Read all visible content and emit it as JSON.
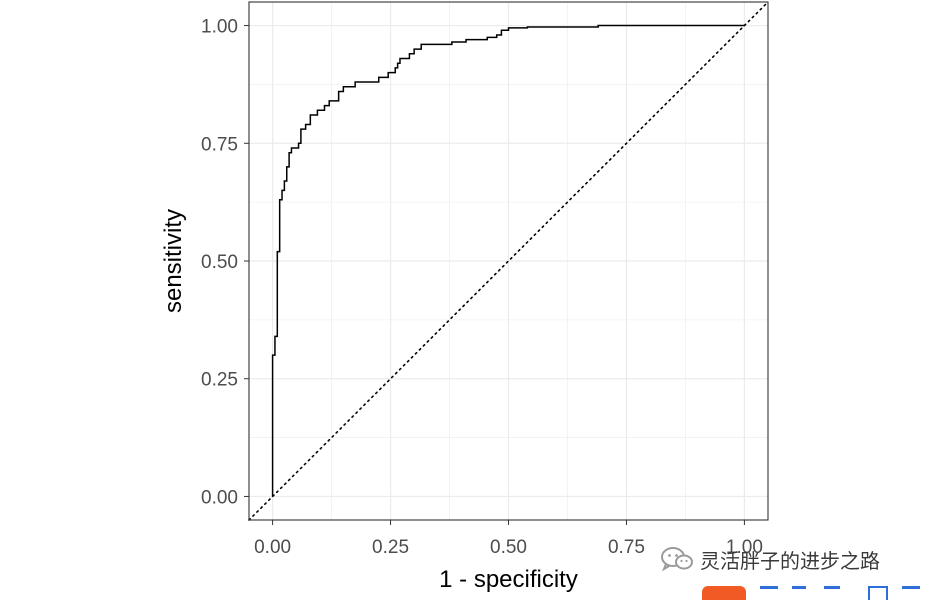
{
  "chart_data": {
    "type": "line",
    "title": "",
    "xlabel": "1 - specificity",
    "ylabel": "sensitivity",
    "xlim": [
      -0.05,
      1.05
    ],
    "ylim": [
      -0.05,
      1.05
    ],
    "x_ticks": [
      "0.00",
      "0.25",
      "0.50",
      "0.75",
      "1.00"
    ],
    "y_ticks": [
      "0.00",
      "0.25",
      "0.50",
      "0.75",
      "1.00"
    ],
    "x_tick_values": [
      0,
      0.25,
      0.5,
      0.75,
      1.0
    ],
    "y_tick_values": [
      0,
      0.25,
      0.5,
      0.75,
      1.0
    ],
    "grid": true,
    "legend": "none",
    "series": [
      {
        "style": "solid",
        "color": "#000000",
        "points": [
          [
            0.0,
            0.0
          ],
          [
            0.0,
            0.3
          ],
          [
            0.005,
            0.3
          ],
          [
            0.005,
            0.34
          ],
          [
            0.01,
            0.34
          ],
          [
            0.01,
            0.52
          ],
          [
            0.015,
            0.52
          ],
          [
            0.015,
            0.63
          ],
          [
            0.02,
            0.63
          ],
          [
            0.02,
            0.65
          ],
          [
            0.025,
            0.65
          ],
          [
            0.025,
            0.67
          ],
          [
            0.03,
            0.67
          ],
          [
            0.03,
            0.7
          ],
          [
            0.035,
            0.7
          ],
          [
            0.035,
            0.73
          ],
          [
            0.04,
            0.73
          ],
          [
            0.04,
            0.74
          ],
          [
            0.055,
            0.74
          ],
          [
            0.055,
            0.75
          ],
          [
            0.06,
            0.75
          ],
          [
            0.06,
            0.78
          ],
          [
            0.07,
            0.78
          ],
          [
            0.07,
            0.79
          ],
          [
            0.08,
            0.79
          ],
          [
            0.08,
            0.81
          ],
          [
            0.095,
            0.81
          ],
          [
            0.095,
            0.82
          ],
          [
            0.11,
            0.82
          ],
          [
            0.11,
            0.83
          ],
          [
            0.12,
            0.83
          ],
          [
            0.12,
            0.84
          ],
          [
            0.14,
            0.84
          ],
          [
            0.14,
            0.86
          ],
          [
            0.15,
            0.86
          ],
          [
            0.15,
            0.87
          ],
          [
            0.175,
            0.87
          ],
          [
            0.175,
            0.88
          ],
          [
            0.225,
            0.88
          ],
          [
            0.225,
            0.89
          ],
          [
            0.245,
            0.89
          ],
          [
            0.245,
            0.9
          ],
          [
            0.26,
            0.9
          ],
          [
            0.26,
            0.91
          ],
          [
            0.265,
            0.91
          ],
          [
            0.265,
            0.92
          ],
          [
            0.27,
            0.92
          ],
          [
            0.27,
            0.93
          ],
          [
            0.29,
            0.93
          ],
          [
            0.29,
            0.94
          ],
          [
            0.3,
            0.94
          ],
          [
            0.3,
            0.95
          ],
          [
            0.315,
            0.95
          ],
          [
            0.315,
            0.96
          ],
          [
            0.38,
            0.96
          ],
          [
            0.38,
            0.965
          ],
          [
            0.41,
            0.965
          ],
          [
            0.41,
            0.97
          ],
          [
            0.455,
            0.97
          ],
          [
            0.455,
            0.975
          ],
          [
            0.475,
            0.975
          ],
          [
            0.475,
            0.98
          ],
          [
            0.485,
            0.98
          ],
          [
            0.485,
            0.99
          ],
          [
            0.5,
            0.99
          ],
          [
            0.5,
            0.995
          ],
          [
            0.54,
            0.995
          ],
          [
            0.54,
            0.997
          ],
          [
            0.69,
            0.997
          ],
          [
            0.69,
            1.0
          ],
          [
            1.0,
            1.0
          ]
        ]
      },
      {
        "style": "dotted",
        "color": "#000000",
        "points": [
          [
            -0.05,
            -0.05
          ],
          [
            1.05,
            1.05
          ]
        ]
      }
    ]
  },
  "watermark": {
    "text": "灵活胖子的进步之路",
    "icon": "wechat-icon"
  },
  "colors": {
    "grid": "#ebebeb",
    "panel_border": "#333333",
    "tick_label": "#4d4d4d",
    "background": "#ffffff",
    "wechat_icon": "#9a9a9a",
    "strip_orange": "#f15a24",
    "strip_blue": "#2e6fd8"
  }
}
